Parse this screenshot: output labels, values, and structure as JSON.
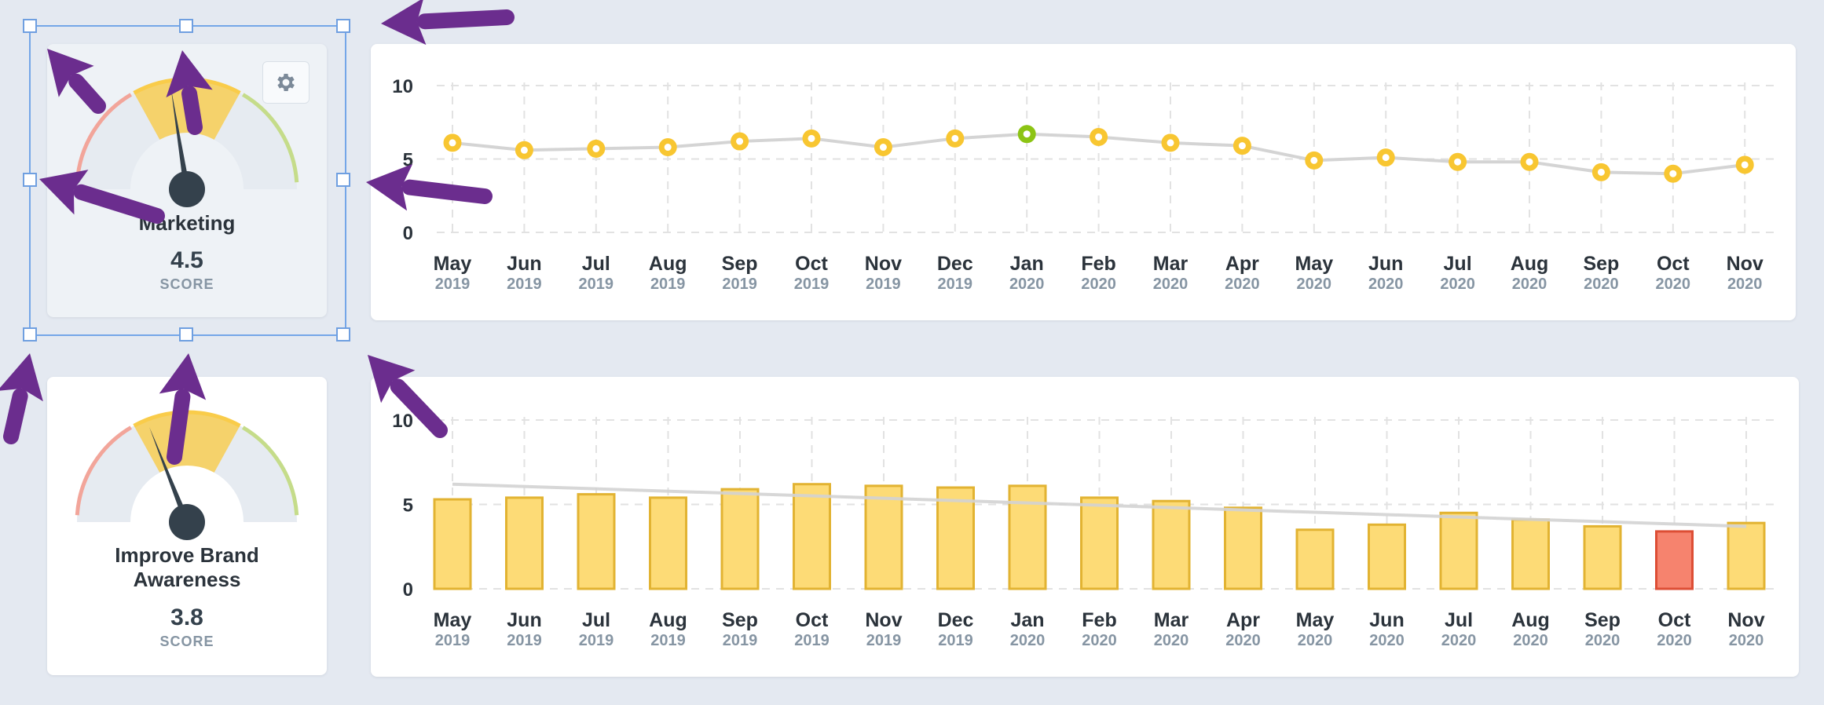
{
  "kpi_cards": [
    {
      "name": "Marketing",
      "score": "4.5",
      "score_label": "SCORE",
      "selected": true,
      "gauge_value": 4.5,
      "gauge_max": 10
    },
    {
      "name": "Improve Brand Awareness",
      "score": "3.8",
      "score_label": "SCORE",
      "selected": false,
      "gauge_value": 3.8,
      "gauge_max": 10
    }
  ],
  "settings": {
    "icon": "gear-icon"
  },
  "annotations": {
    "arrow_color": "#6b2d8e"
  },
  "colors": {
    "gauge_red": "#f2a59a",
    "gauge_yellow": "#f9cc4a",
    "gauge_green": "#c5dc8a",
    "gauge_track": "#e6ebf1",
    "needle": "#34414c",
    "line": "#d4d4d4",
    "point_yellow": "#f8c631",
    "point_green": "#8cc414",
    "bar_fill": "#fddb76",
    "bar_stroke": "#e2b332",
    "bar_highlight_fill": "#f6836e",
    "bar_highlight_stroke": "#dd4e35",
    "trend": "#d3d3d3",
    "grid": "#e2e2e2"
  },
  "chart_data": [
    {
      "type": "line",
      "categories": [
        "May",
        "Jun",
        "Jul",
        "Aug",
        "Sep",
        "Oct",
        "Nov",
        "Dec",
        "Jan",
        "Feb",
        "Mar",
        "Apr",
        "May",
        "Jun",
        "Jul",
        "Aug",
        "Sep",
        "Oct",
        "Nov"
      ],
      "years": [
        "2019",
        "2019",
        "2019",
        "2019",
        "2019",
        "2019",
        "2019",
        "2019",
        "2020",
        "2020",
        "2020",
        "2020",
        "2020",
        "2020",
        "2020",
        "2020",
        "2020",
        "2020",
        "2020"
      ],
      "values": [
        6.1,
        5.6,
        5.7,
        5.8,
        6.2,
        6.4,
        5.8,
        6.4,
        6.7,
        6.5,
        6.1,
        5.9,
        4.9,
        5.1,
        4.8,
        4.8,
        4.1,
        4.0,
        4.6
      ],
      "highlight_index": 8,
      "yticks": [
        "0",
        "5",
        "10"
      ],
      "ylim": [
        0,
        10
      ],
      "grid": true
    },
    {
      "type": "bar",
      "categories": [
        "May",
        "Jun",
        "Jul",
        "Aug",
        "Sep",
        "Oct",
        "Nov",
        "Dec",
        "Jan",
        "Feb",
        "Mar",
        "Apr",
        "May",
        "Jun",
        "Jul",
        "Aug",
        "Sep",
        "Oct",
        "Nov"
      ],
      "years": [
        "2019",
        "2019",
        "2019",
        "2019",
        "2019",
        "2019",
        "2019",
        "2019",
        "2020",
        "2020",
        "2020",
        "2020",
        "2020",
        "2020",
        "2020",
        "2020",
        "2020",
        "2020",
        "2020"
      ],
      "values": [
        5.3,
        5.4,
        5.6,
        5.4,
        5.9,
        6.2,
        6.1,
        6.0,
        6.1,
        5.4,
        5.2,
        4.8,
        3.5,
        3.8,
        4.5,
        4.1,
        3.7,
        3.4,
        3.9
      ],
      "highlight_index": 17,
      "trend": [
        6.2,
        3.7
      ],
      "yticks": [
        "0",
        "5",
        "10"
      ],
      "ylim": [
        0,
        10
      ],
      "grid": true
    }
  ]
}
